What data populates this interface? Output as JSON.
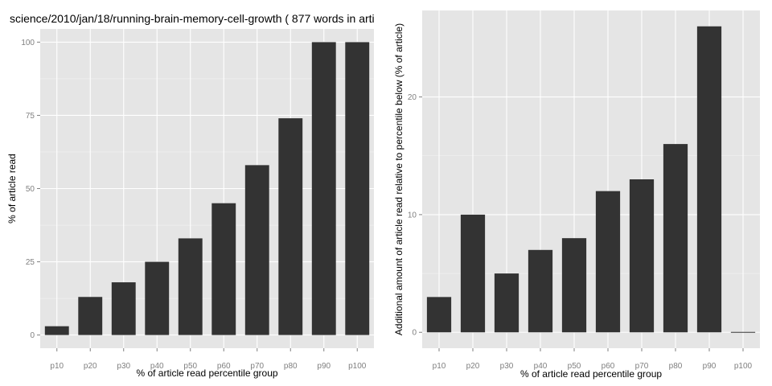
{
  "chart_data": [
    {
      "type": "bar",
      "title": "science/2010/jan/18/running-brain-memory-cell-growth ( 877 words in arti",
      "xlabel": "% of article read percentile group",
      "ylabel": "% of article read",
      "categories": [
        "p10",
        "p20",
        "p30",
        "p40",
        "p50",
        "p60",
        "p70",
        "p80",
        "p90",
        "p100"
      ],
      "values": [
        3,
        13,
        18,
        25,
        33,
        45,
        58,
        74,
        100,
        100
      ],
      "yticks": [
        0,
        25,
        50,
        75,
        100
      ],
      "ylim": [
        -4.5,
        104.5
      ],
      "bar_color": "#333333",
      "panel_color": "#e5e5e5",
      "grid": true
    },
    {
      "type": "bar",
      "title": "",
      "xlabel": "% of article read percentile group",
      "ylabel": "Additional amount of article read relative to percentile below (% of article)",
      "categories": [
        "p10",
        "p20",
        "p30",
        "p40",
        "p50",
        "p60",
        "p70",
        "p80",
        "p90",
        "p100"
      ],
      "values": [
        3,
        10,
        5,
        7,
        8,
        12,
        13,
        16,
        26,
        0
      ],
      "yticks": [
        0,
        10,
        20
      ],
      "ylim": [
        -1.35,
        27.35
      ],
      "bar_color": "#333333",
      "panel_color": "#e5e5e5",
      "grid": true
    }
  ]
}
